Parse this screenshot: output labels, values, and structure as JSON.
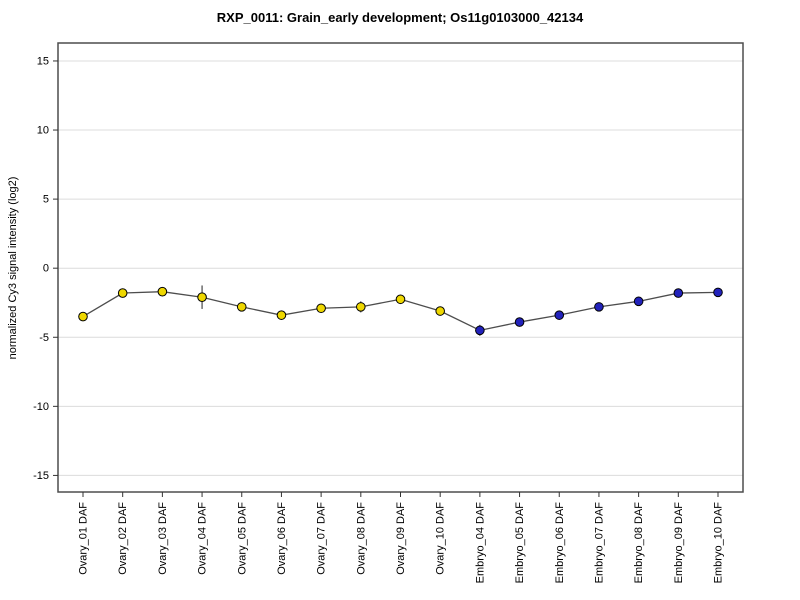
{
  "chart_data": {
    "type": "line",
    "title": "RXP_0011: Grain_early development; Os11g0103000_42134",
    "xlabel": "",
    "ylabel": "normalized Cy3 signal intensity (log2)",
    "ylim": [
      -16.2,
      16.3
    ],
    "yticks": [
      15,
      10,
      5,
      0,
      -5,
      -10,
      -15
    ],
    "grid": "horizontal",
    "legend": "none",
    "categories": [
      "Ovary_01 DAF",
      "Ovary_02 DAF",
      "Ovary_03 DAF",
      "Ovary_04 DAF",
      "Ovary_05 DAF",
      "Ovary_06 DAF",
      "Ovary_07 DAF",
      "Ovary_08 DAF",
      "Ovary_09 DAF",
      "Ovary_10 DAF",
      "Embryo_04 DAF",
      "Embryo_05 DAF",
      "Embryo_06 DAF",
      "Embryo_07 DAF",
      "Embryo_08 DAF",
      "Embryo_09 DAF",
      "Embryo_10 DAF"
    ],
    "series": [
      {
        "name": "normalized Cy3 signal intensity (log2)",
        "values": [
          -3.5,
          -1.8,
          -1.7,
          -2.1,
          -2.8,
          -3.4,
          -2.9,
          -2.8,
          -2.25,
          -3.1,
          -4.5,
          -3.9,
          -3.4,
          -2.8,
          -2.4,
          -1.8,
          -1.75
        ],
        "errors": [
          0.2,
          0.2,
          0.1,
          0.85,
          0.15,
          0.15,
          0.15,
          0.4,
          0.15,
          0.15,
          0.4,
          0.2,
          0.15,
          0.1,
          0.1,
          0.1,
          0.1
        ],
        "marker": "circle",
        "point_groups": [
          "ovary",
          "ovary",
          "ovary",
          "ovary",
          "ovary",
          "ovary",
          "ovary",
          "ovary",
          "ovary",
          "ovary",
          "embryo",
          "embryo",
          "embryo",
          "embryo",
          "embryo",
          "embryo",
          "embryo"
        ]
      }
    ],
    "colors": {
      "ovary_marker_fill": "#EED700",
      "embryo_marker_fill": "#2222BB",
      "marker_stroke": "#000000",
      "line": "#4d4d4d",
      "error_bar": "#222222",
      "gridline": "#dcdcdc",
      "box_border": "#4d4d4d",
      "tick": "#333333",
      "background": "#ffffff"
    }
  }
}
